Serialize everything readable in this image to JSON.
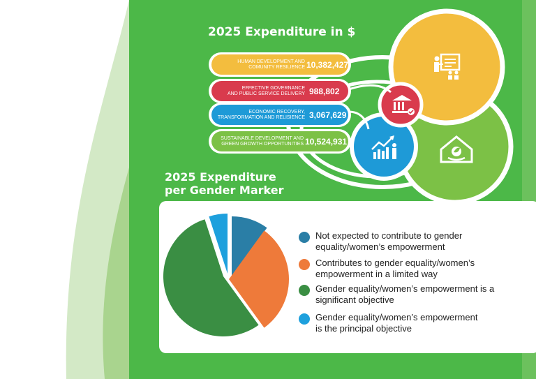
{
  "colors": {
    "page_background": "#ffffff",
    "panel_green": "#4cb848",
    "light_green_shape": "#d3e9c6",
    "yellow": "#f3bd3e",
    "red": "#d93b4d",
    "blue": "#1e9ad7",
    "lime": "#7cc146"
  },
  "expenditure": {
    "title": "2025 Expenditure in $",
    "rows": [
      {
        "label_line1": "HUMAN DEVELOPMENT AND",
        "label_line2": "COMUNITY RESILIENCE",
        "value": "10,382,427",
        "color": "#f3bd3e"
      },
      {
        "label_line1": "EFFECTIVE GOVERNANCE",
        "label_line2": "AND PUBLIC SERVICE DELIVERY",
        "value": "988,802",
        "color": "#d93b4d"
      },
      {
        "label_line1": "ECONOMIC RECOVERY,",
        "label_line2": "TRANSFORMATION AND RELISIENCE",
        "value": "3,067,629",
        "color": "#1e9ad7"
      },
      {
        "label_line1": "SUSTAINABLE DEVELOPMENT AND",
        "label_line2": "GREEN GROWTH OPPORTUNITIES",
        "value": "10,524,931",
        "color": "#7cc146"
      }
    ],
    "icons": [
      "teacher-icon",
      "bank-icon",
      "growth-chart-icon",
      "green-home-icon"
    ]
  },
  "gender": {
    "title_line1": "2025 Expenditure",
    "title_line2": "per Gender Marker"
  },
  "chart_data": {
    "type": "pie",
    "series": [
      {
        "name": "Not expected to contribute to gender equality/women’s empowerment",
        "value": 10,
        "color": "#2a7ea6"
      },
      {
        "name": "Contributes to gender equality/women’s empowerment in a limited way",
        "value": 30,
        "color": "#ee7a3a"
      },
      {
        "name": "Gender equality/women’s empowerment is a significant objective",
        "value": 55,
        "color": "#3a8e43"
      },
      {
        "name": "Gender equality/women’s empowerment is the principal objective",
        "value": 5,
        "color": "#1ea0dd"
      }
    ],
    "legend_position": "right"
  }
}
